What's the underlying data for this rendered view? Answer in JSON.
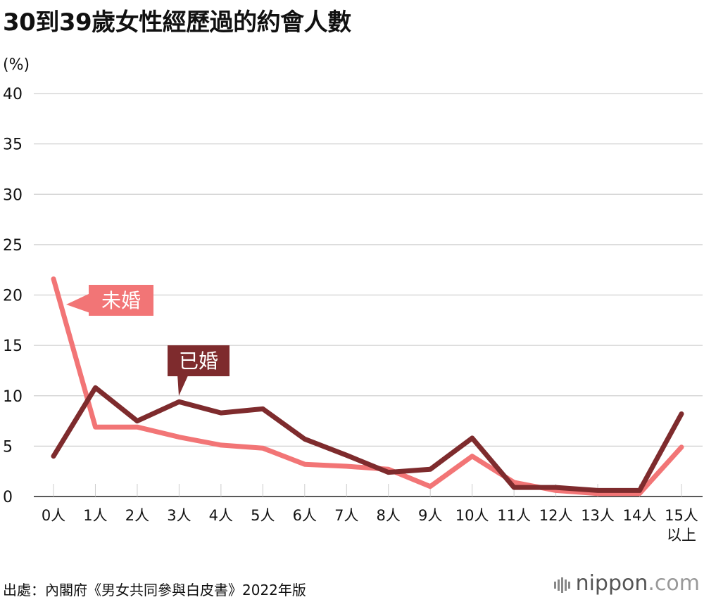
{
  "title": "30到39歲女性經歷過的約會人數",
  "unit_label": "(%)",
  "source": "出處：內閣府《男女共同參與白皮書》2022年版",
  "logo_text": "nippon",
  "logo_suffix": ".com",
  "chart_data": {
    "type": "line",
    "title": "30到39歲女性經歷過的約會人數",
    "ylabel": "(%)",
    "ylim": [
      0,
      40
    ],
    "yticks": [
      "0",
      "5",
      "10",
      "15",
      "20",
      "25",
      "30",
      "35",
      "40"
    ],
    "categories": [
      "0人",
      "1人",
      "2人",
      "3人",
      "4人",
      "5人",
      "6人",
      "7人",
      "8人",
      "9人",
      "10人",
      "11人",
      "12人",
      "13人",
      "14人",
      "15人以上"
    ],
    "category_labels": [
      [
        "0人"
      ],
      [
        "1人"
      ],
      [
        "2人"
      ],
      [
        "3人"
      ],
      [
        "4人"
      ],
      [
        "5人"
      ],
      [
        "6人"
      ],
      [
        "7人"
      ],
      [
        "8人"
      ],
      [
        "9人"
      ],
      [
        "10人"
      ],
      [
        "11人"
      ],
      [
        "12人"
      ],
      [
        "13人"
      ],
      [
        "14人"
      ],
      [
        "15人",
        "以上"
      ]
    ],
    "grid": true,
    "series": [
      {
        "name": "未婚",
        "color": "#f27576",
        "values": [
          21.6,
          6.9,
          6.9,
          5.9,
          5.1,
          4.8,
          3.2,
          3.0,
          2.7,
          1.0,
          4.0,
          1.4,
          0.6,
          0.3,
          0.3,
          4.9
        ]
      },
      {
        "name": "已婚",
        "color": "#7e2b2d",
        "values": [
          4.0,
          10.8,
          7.5,
          9.4,
          8.3,
          8.7,
          5.7,
          4.1,
          2.4,
          2.7,
          5.8,
          0.9,
          0.9,
          0.6,
          0.6,
          8.2
        ]
      }
    ]
  }
}
